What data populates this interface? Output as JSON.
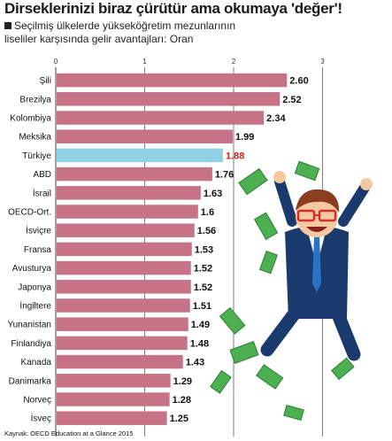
{
  "header": {
    "title": "Dirseklerinizi biraz çürütür ama okumaya 'değer'!",
    "subtitle_line1": "Seçilmiş ülkelerde yükseköğretim mezunlarının",
    "subtitle_line2": "liseliler karşısında gelir avantajları: Oran"
  },
  "footer": {
    "source": "Kaynak: OECD Education at a Glance 2015"
  },
  "colors": {
    "bar": "#c77387",
    "highlight_bar": "#8fd2e6",
    "highlight_label": "#d42020",
    "grid": "#444444"
  },
  "illustration": {
    "icon": "happy-man-jumping-with-money-icon"
  },
  "chart_data": {
    "type": "bar",
    "orientation": "horizontal",
    "title": "Dirseklerinizi biraz çürütür ama okumaya 'değer'!",
    "categories": [
      "Şili",
      "Brezilya",
      "Kolombiya",
      "Meksika",
      "Türkiye",
      "ABD",
      "İsrail",
      "OECD-Ort.",
      "İsviçre",
      "Fransa",
      "Avusturya",
      "Japonya",
      "İngiltere",
      "Yunanistan",
      "Finlandiya",
      "Kanada",
      "Danimarka",
      "Norveç",
      "İsveç"
    ],
    "values": [
      2.6,
      2.52,
      2.34,
      1.99,
      1.88,
      1.76,
      1.63,
      1.6,
      1.56,
      1.53,
      1.52,
      1.52,
      1.51,
      1.49,
      1.48,
      1.43,
      1.29,
      1.28,
      1.25
    ],
    "value_labels": [
      "2.60",
      "2.52",
      "2.34",
      "1.99",
      "1.88",
      "1.76",
      "1.63",
      "1.6",
      "1.56",
      "1.53",
      "1.52",
      "1.52",
      "1.51",
      "1.49",
      "1.48",
      "1.43",
      "1.29",
      "1.28",
      "1.25"
    ],
    "highlight": "Türkiye",
    "xlim": [
      0,
      3
    ],
    "xticks": [
      "0",
      "1",
      "2",
      "3"
    ],
    "grid": true
  }
}
